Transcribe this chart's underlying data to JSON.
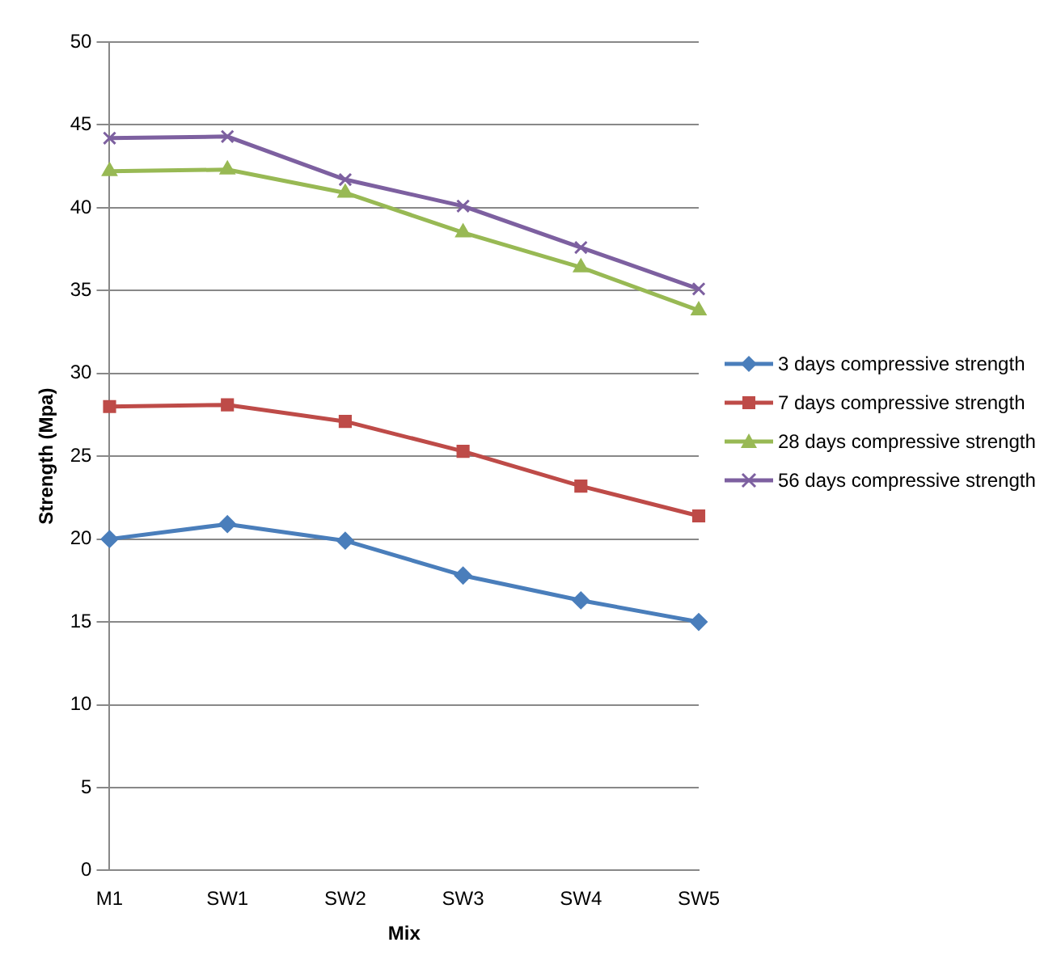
{
  "chart_data": {
    "type": "line",
    "xlabel": "Mix",
    "ylabel": "Strength (Mpa)",
    "categories": [
      "M1",
      "SW1",
      "SW2",
      "SW3",
      "SW4",
      "SW5"
    ],
    "series": [
      {
        "name": "3 days compressive strength",
        "color": "#4a7ebb",
        "marker": "diamond",
        "values": [
          20.0,
          20.9,
          19.9,
          17.8,
          16.3,
          15.0
        ]
      },
      {
        "name": "7 days compressive strength",
        "color": "#be4b48",
        "marker": "square",
        "values": [
          28.0,
          28.1,
          27.1,
          25.3,
          23.2,
          21.4
        ]
      },
      {
        "name": "28 days compressive strength",
        "color": "#98b954",
        "marker": "triangle",
        "values": [
          42.2,
          42.3,
          40.9,
          38.5,
          36.4,
          33.8
        ]
      },
      {
        "name": "56 days compressive strength",
        "color": "#7d60a0",
        "marker": "cross",
        "values": [
          44.2,
          44.3,
          41.7,
          40.1,
          37.6,
          35.1
        ]
      }
    ],
    "ylim": [
      0,
      50
    ],
    "yticks": [
      0,
      5,
      10,
      15,
      20,
      25,
      30,
      35,
      40,
      45,
      50
    ],
    "grid": "y",
    "legend": "right",
    "line_style": "solid"
  }
}
